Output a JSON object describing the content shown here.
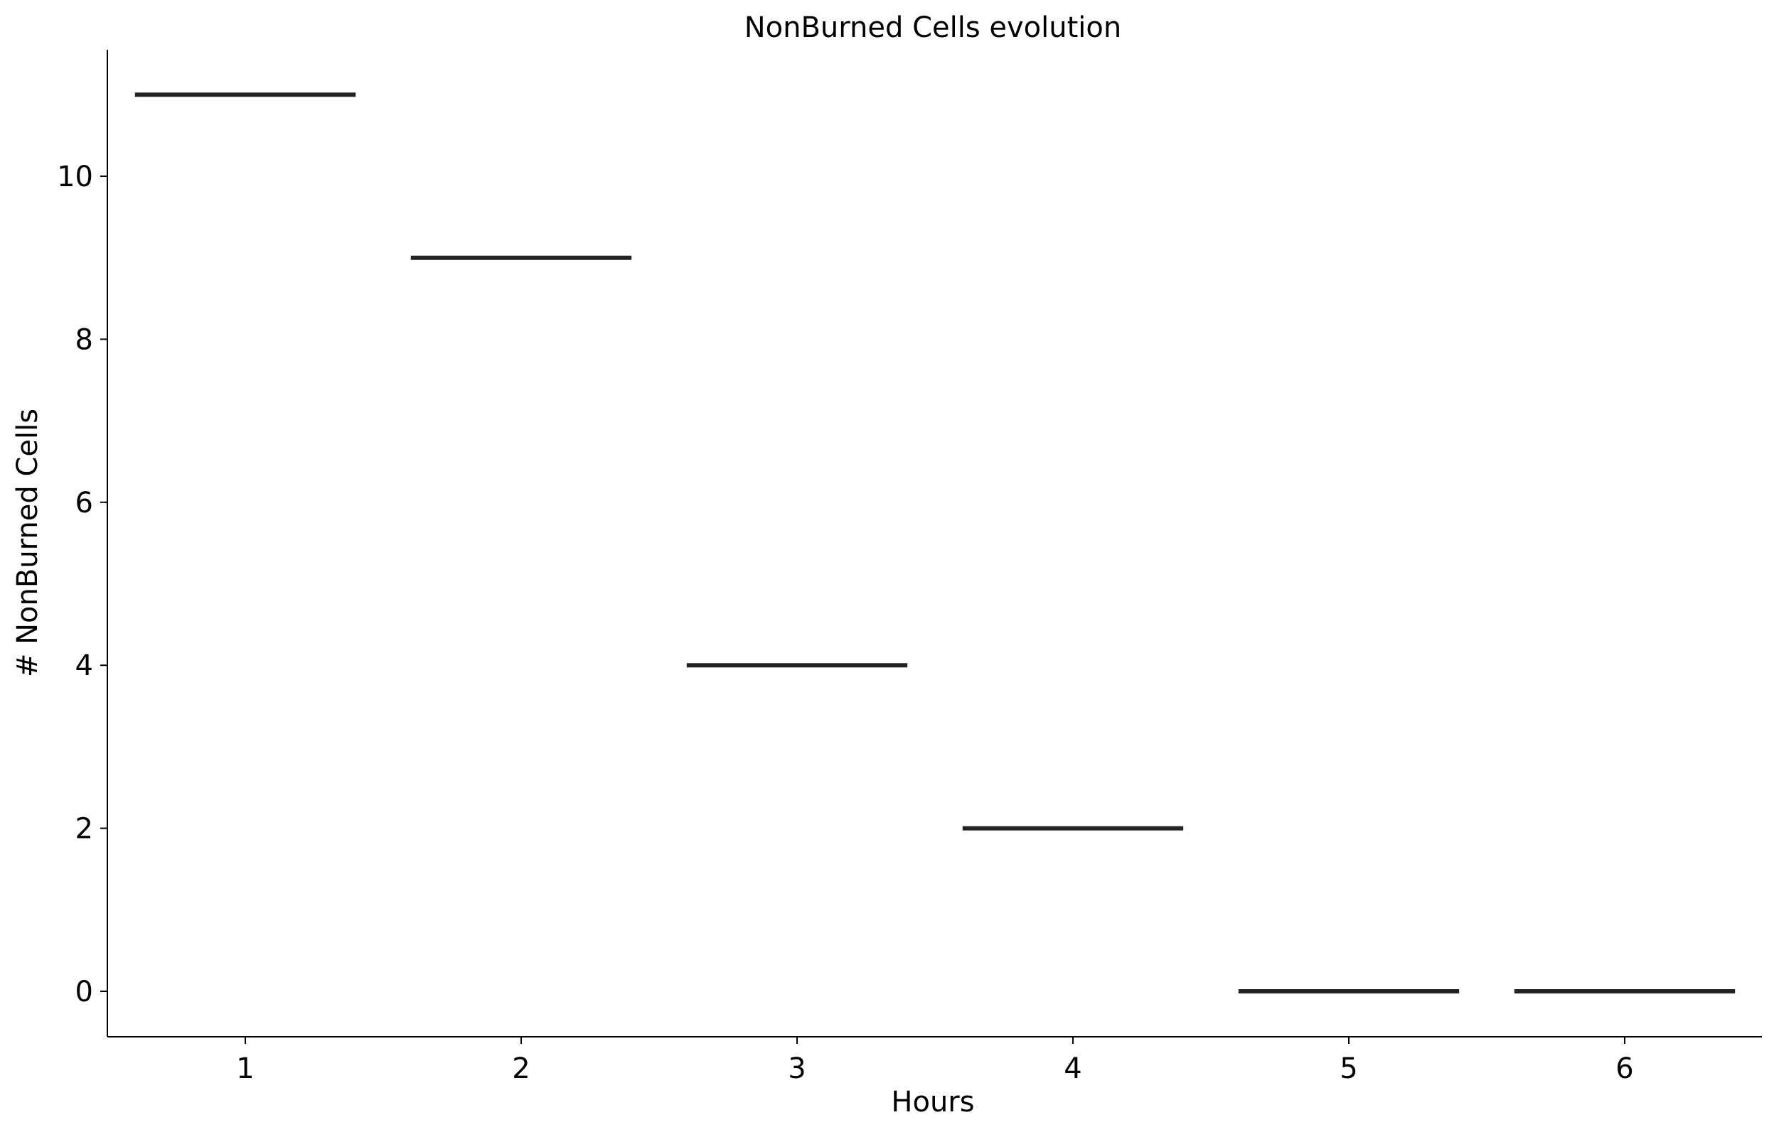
{
  "chart_data": {
    "type": "bar",
    "style": "horizontal-segments",
    "title": "NonBurned Cells evolution",
    "xlabel": "Hours",
    "ylabel": "# NonBurned Cells",
    "categories": [
      "1",
      "2",
      "3",
      "4",
      "5",
      "6"
    ],
    "values": [
      11,
      9,
      4,
      2,
      0,
      0
    ],
    "yticks": [
      "0",
      "2",
      "4",
      "6",
      "8",
      "10"
    ],
    "ylim": [
      -0.55,
      11.55
    ],
    "grid": false,
    "mark_color": "#222222"
  }
}
